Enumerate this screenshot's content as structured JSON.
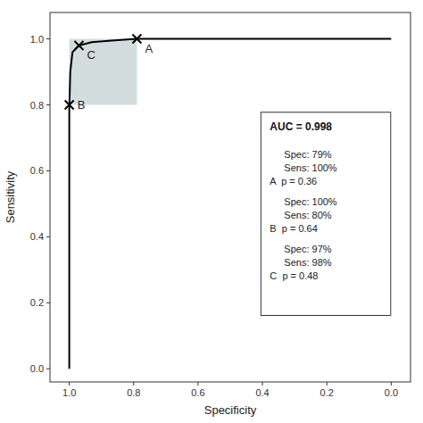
{
  "chart_data": {
    "type": "line",
    "xlabel": "Specificity",
    "ylabel": "Sensitivity",
    "x": [
      1.0,
      1.0,
      1.0,
      0.999,
      0.997,
      0.99,
      0.97,
      0.93,
      0.87,
      0.79,
      0.6,
      0.4,
      0.2,
      0.0
    ],
    "values": [
      0.0,
      0.5,
      0.8,
      0.82,
      0.9,
      0.96,
      0.98,
      0.99,
      0.995,
      1.0,
      1.0,
      1.0,
      1.0,
      1.0
    ],
    "color": "#000000",
    "xlim": [
      1.06,
      -0.06
    ],
    "ylim": [
      -0.04,
      1.08
    ],
    "xticks": [
      {
        "value": 1.0,
        "label": "1.0"
      },
      0.8,
      0.6,
      0.4,
      0.2,
      {
        "value": 0.0,
        "label": "0.0"
      }
    ],
    "yticks": [
      {
        "value": 0.0,
        "label": "0.0"
      },
      0.2,
      0.4,
      0.6,
      0.8,
      {
        "value": 1.0,
        "label": "1.0"
      }
    ],
    "shade": {
      "x": 0.79,
      "y": 0.8,
      "width": 0.21,
      "height": 0.2,
      "color": "#a8bcbc"
    },
    "points": [
      {
        "label": "A",
        "x": 0.79,
        "y": 1.0,
        "notes": [
          "Spec: 79%",
          "Sens: 100%",
          "A  p = 0.36"
        ]
      },
      {
        "label": "B",
        "x": 1.0,
        "y": 0.8,
        "notes": [
          "Spec: 100%",
          "Sens: 80%",
          "B  p = 0.64"
        ]
      },
      {
        "label": "C",
        "x": 0.97,
        "y": 0.98,
        "notes": [
          "Spec: 97%",
          "Sens: 98%",
          "C  p = 0.48"
        ]
      }
    ],
    "annotation": "AUC = 0.998"
  }
}
